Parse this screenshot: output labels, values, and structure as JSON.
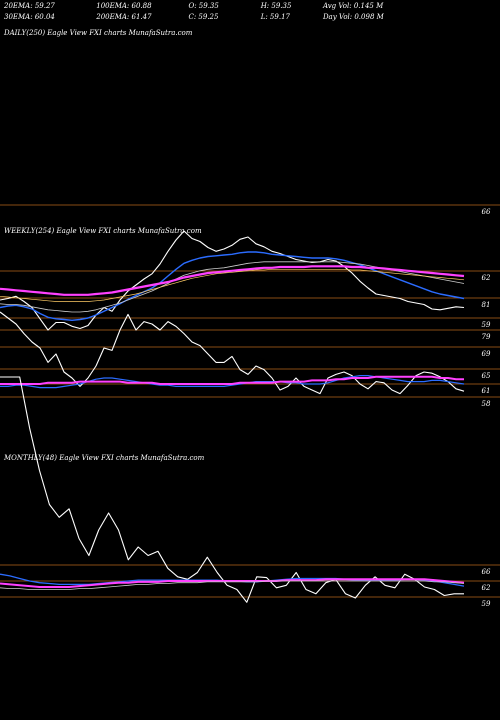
{
  "header": {
    "row1": [
      {
        "label": "20EMA: 59.27"
      },
      {
        "label": "100EMA: 60.88"
      },
      {
        "label": "O: 59.35"
      },
      {
        "label": "H: 59.35"
      },
      {
        "label": "Avg Vol: 0.145  M"
      }
    ],
    "row2": [
      {
        "label": "30EMA: 60.04"
      },
      {
        "label": "200EMA: 61.47"
      },
      {
        "label": "C: 59.25"
      },
      {
        "label": "L: 59.17"
      },
      {
        "label": "Day Vol: 0.098  M"
      }
    ]
  },
  "colors": {
    "background": "#000000",
    "text": "#ffffff",
    "price": "#ffffff",
    "level_line": "#b5651d",
    "ema_short": "#2b6cff",
    "ema_long": "#ff40ff",
    "ema_mid": "#cccccc"
  },
  "chart_data": [
    {
      "type": "line",
      "title": "DAILY(250) Eagle  View  FXI charts MunafaSutra.com",
      "levels": [
        66
      ],
      "level_labels": [
        "66"
      ],
      "ylim": [
        55,
        70
      ],
      "series": []
    },
    {
      "type": "line",
      "title": "WEEKLY(254) Eagle  View  FXI charts MunafaSutra.com",
      "levels": [
        62,
        81,
        59,
        79,
        69,
        65,
        61,
        58
      ],
      "level_labels": [
        "62",
        "81",
        "59",
        "79",
        "69",
        "65",
        "61",
        "58"
      ],
      "series": [
        {
          "values": [
            55,
            55.2,
            55.5,
            54.8,
            54,
            52.5,
            51,
            52,
            52,
            51.5,
            51.2,
            51.6,
            53,
            54,
            53.5,
            55,
            56.2,
            57,
            57.8,
            58.5,
            59.8,
            61.5,
            63,
            64.2,
            63.2,
            62.8,
            62,
            61.5,
            61.8,
            62.3,
            63.1,
            63.4,
            62.5,
            62.1,
            61.5,
            61.2,
            60.8,
            60.4,
            60.2,
            60,
            60.1,
            60.4,
            60.2,
            59.5,
            58.6,
            57.5,
            56.6,
            55.8,
            55.6,
            55.4,
            55.2,
            54.8,
            54.6,
            54.4,
            53.8,
            53.7,
            53.9,
            54.1,
            54
          ]
        },
        {
          "values": [
            54,
            54.2,
            54.3,
            54.1,
            53.8,
            53.2,
            52.7,
            52.5,
            52.4,
            52.3,
            52.4,
            52.6,
            53,
            53.5,
            54,
            54.5,
            55.1,
            55.6,
            56.1,
            56.6,
            57.3,
            58.2,
            59.1,
            59.9,
            60.3,
            60.6,
            60.8,
            60.9,
            61,
            61.1,
            61.3,
            61.4,
            61.4,
            61.3,
            61.1,
            61,
            60.9,
            60.8,
            60.7,
            60.6,
            60.6,
            60.6,
            60.5,
            60.3,
            60,
            59.7,
            59.3,
            58.9,
            58.5,
            58.1,
            57.7,
            57.3,
            56.9,
            56.5,
            56.1,
            55.8,
            55.6,
            55.4,
            55.2
          ]
        },
        {
          "values": [
            54.5,
            54.4,
            54.4,
            54.3,
            54.1,
            53.9,
            53.7,
            53.6,
            53.5,
            53.4,
            53.4,
            53.5,
            53.7,
            54,
            54.3,
            54.6,
            55,
            55.4,
            55.8,
            56.2,
            56.7,
            57.2,
            57.8,
            58.3,
            58.6,
            58.9,
            59.1,
            59.2,
            59.3,
            59.5,
            59.7,
            59.9,
            60,
            60.1,
            60.1,
            60.1,
            60.1,
            60.1,
            60.1,
            60.1,
            60.1,
            60.1,
            60.1,
            60,
            59.9,
            59.8,
            59.6,
            59.4,
            59.2,
            59,
            58.8,
            58.6,
            58.4,
            58.2,
            58,
            57.8,
            57.6,
            57.4,
            57.2
          ]
        },
        {
          "values": [
            56.5,
            56.4,
            56.3,
            56.2,
            56.1,
            56,
            55.9,
            55.8,
            55.7,
            55.7,
            55.7,
            55.7,
            55.8,
            55.9,
            56,
            56.2,
            56.4,
            56.6,
            56.8,
            57,
            57.2,
            57.4,
            57.7,
            58,
            58.2,
            58.4,
            58.6,
            58.7,
            58.8,
            58.9,
            59,
            59.1,
            59.2,
            59.3,
            59.3,
            59.4,
            59.4,
            59.4,
            59.4,
            59.5,
            59.5,
            59.5,
            59.5,
            59.5,
            59.4,
            59.4,
            59.3,
            59.3,
            59.2,
            59.1,
            59,
            58.9,
            58.8,
            58.7,
            58.6,
            58.5,
            58.4,
            58.3,
            58.2
          ]
        },
        {
          "values": [
            55.5,
            55.4,
            55.3,
            55.2,
            55.1,
            55,
            54.9,
            54.8,
            54.8,
            54.8,
            54.8,
            54.8,
            54.9,
            55,
            55.2,
            55.4,
            55.6,
            55.8,
            56.1,
            56.4,
            56.7,
            57,
            57.3,
            57.6,
            57.9,
            58.1,
            58.3,
            58.5,
            58.6,
            58.7,
            58.8,
            58.9,
            59,
            59,
            59.1,
            59.1,
            59.1,
            59.1,
            59.1,
            59.1,
            59.1,
            59.1,
            59.1,
            59.1,
            59,
            59,
            58.9,
            58.8,
            58.7,
            58.6,
            58.5,
            58.4,
            58.3,
            58.2,
            58.1,
            58,
            57.9,
            57.8,
            57.7
          ]
        },
        {
          "values": [
            36,
            35.5,
            35,
            34.2,
            33.5,
            33,
            31.8,
            32.5,
            31,
            30.5,
            29.8,
            30.5,
            31.5,
            33,
            32.8,
            34.5,
            35.8,
            34.5,
            35.2,
            35,
            34.5,
            35.2,
            34.8,
            34.2,
            33.5,
            33.2,
            32.5,
            31.8,
            31.8,
            32.3,
            31.2,
            30.8,
            31.5,
            31.2,
            30.5,
            29.5,
            29.8,
            30.5,
            29.8,
            29.5,
            29.2,
            30.5,
            30.8,
            31,
            30.7,
            30,
            29.6,
            30.2,
            30.1,
            29.5,
            29.2,
            29.9,
            30.7,
            31,
            30.9,
            30.6,
            30.2,
            29.6,
            29.4
          ]
        },
        {
          "values": [
            29.8,
            29.8,
            29.9,
            29.9,
            29.8,
            29.7,
            29.7,
            29.7,
            29.8,
            29.9,
            30,
            30.2,
            30.4,
            30.5,
            30.5,
            30.4,
            30.3,
            30.2,
            30.1,
            30,
            29.9,
            29.9,
            29.8,
            29.8,
            29.8,
            29.8,
            29.8,
            29.8,
            29.8,
            29.9,
            30,
            30.1,
            30.2,
            30.2,
            30.2,
            30.2,
            30.1,
            30.1,
            30,
            30,
            30,
            30.1,
            30.3,
            30.5,
            30.6,
            30.7,
            30.7,
            30.6,
            30.5,
            30.4,
            30.3,
            30.2,
            30.2,
            30.2,
            30.3,
            30.3,
            30.2,
            30.1,
            30
          ]
        },
        {
          "values": [
            30,
            30,
            30,
            30,
            30,
            30,
            30.1,
            30.1,
            30.1,
            30.1,
            30.2,
            30.2,
            30.2,
            30.2,
            30.2,
            30.2,
            30.1,
            30.1,
            30.1,
            30.1,
            30,
            30,
            30,
            30,
            30,
            30,
            30,
            30,
            30,
            30,
            30.1,
            30.1,
            30.1,
            30.1,
            30.1,
            30.2,
            30.2,
            30.2,
            30.2,
            30.3,
            30.3,
            30.3,
            30.4,
            30.4,
            30.5,
            30.5,
            30.5,
            30.6,
            30.6,
            30.6,
            30.6,
            30.6,
            30.6,
            30.6,
            30.6,
            30.5,
            30.5,
            30.4,
            30.4
          ]
        }
      ]
    },
    {
      "type": "line",
      "title": "MONTHLY(48) Eagle  View  FXI charts MunafaSutra.com",
      "levels": [
        66,
        62,
        59
      ],
      "level_labels": [
        "66",
        "62",
        "59"
      ],
      "series": [
        {
          "values": [
            85,
            85,
            85,
            79,
            74,
            70,
            68.5,
            69.5,
            66,
            64,
            67,
            69,
            67,
            63.5,
            65,
            64,
            64.5,
            62.5,
            61.5,
            61.2,
            62,
            63.8,
            62,
            60.5,
            60,
            58.5,
            61.5,
            61.4,
            60.2,
            60.5,
            62,
            60,
            59.5,
            60.8,
            61.2,
            59.5,
            59,
            60.5,
            61.5,
            60.5,
            60.2,
            61.8,
            61.2,
            60.3,
            60,
            59.3,
            59.5,
            59.5
          ]
        },
        {
          "values": [
            61.8,
            61.6,
            61.3,
            61,
            60.8,
            60.7,
            60.6,
            60.6,
            60.6,
            60.6,
            60.7,
            60.8,
            60.9,
            61,
            61.1,
            61.1,
            61.1,
            61.1,
            61.1,
            61.1,
            61.1,
            61.1,
            61.1,
            61,
            61,
            60.9,
            60.9,
            61,
            61.1,
            61.2,
            61.3,
            61.3,
            61.3,
            61.3,
            61.3,
            61.2,
            61.1,
            61.1,
            61.1,
            61.1,
            61.1,
            61.2,
            61.2,
            61.1,
            61,
            60.8,
            60.6,
            60.4
          ]
        },
        {
          "values": [
            60.7,
            60.6,
            60.5,
            60.4,
            60.3,
            60.3,
            60.3,
            60.3,
            60.4,
            60.5,
            60.6,
            60.7,
            60.8,
            60.8,
            60.9,
            60.9,
            60.9,
            61,
            61,
            61,
            61,
            61,
            61,
            61,
            61,
            61,
            61,
            61,
            61,
            61.1,
            61.1,
            61.1,
            61.1,
            61.2,
            61.2,
            61.2,
            61.2,
            61.2,
            61.2,
            61.2,
            61.2,
            61.2,
            61.2,
            61.2,
            61.1,
            61,
            60.9,
            60.8
          ]
        },
        {
          "values": [
            60.2,
            60.1,
            60.1,
            60,
            60,
            60,
            60,
            60,
            60.1,
            60.1,
            60.2,
            60.3,
            60.4,
            60.5,
            60.6,
            60.6,
            60.7,
            60.7,
            60.8,
            60.8,
            60.8,
            60.9,
            60.9,
            60.9,
            60.9,
            60.9,
            60.9,
            61,
            61,
            61,
            61,
            61,
            61,
            61,
            61,
            61,
            61,
            61,
            61,
            61,
            61,
            61,
            61,
            61,
            60.9,
            60.9,
            60.8,
            60.7
          ]
        }
      ]
    }
  ]
}
